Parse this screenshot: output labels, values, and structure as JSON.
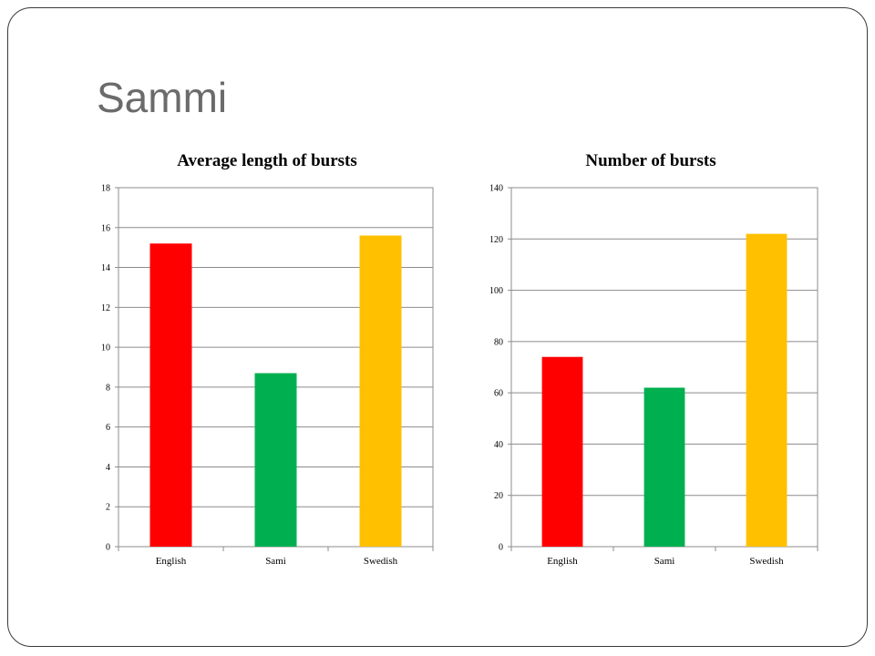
{
  "slide": {
    "title": "Sammi"
  },
  "chart_data": [
    {
      "type": "bar",
      "title": "Average length of bursts",
      "categories": [
        "English",
        "Sami",
        "Swedish"
      ],
      "values": [
        15.2,
        8.7,
        15.6
      ],
      "colors": [
        "#ff0000",
        "#00b050",
        "#ffc000"
      ],
      "ylim": [
        0,
        18
      ],
      "yticks": [
        0,
        2,
        4,
        6,
        8,
        10,
        12,
        14,
        16,
        18
      ],
      "grid": true,
      "legend": "none"
    },
    {
      "type": "bar",
      "title": "Number of bursts",
      "categories": [
        "English",
        "Sami",
        "Swedish"
      ],
      "values": [
        74,
        62,
        122
      ],
      "colors": [
        "#ff0000",
        "#00b050",
        "#ffc000"
      ],
      "ylim": [
        0,
        140
      ],
      "yticks": [
        0,
        20,
        40,
        60,
        80,
        100,
        120,
        140
      ],
      "grid": true,
      "legend": "none"
    }
  ]
}
